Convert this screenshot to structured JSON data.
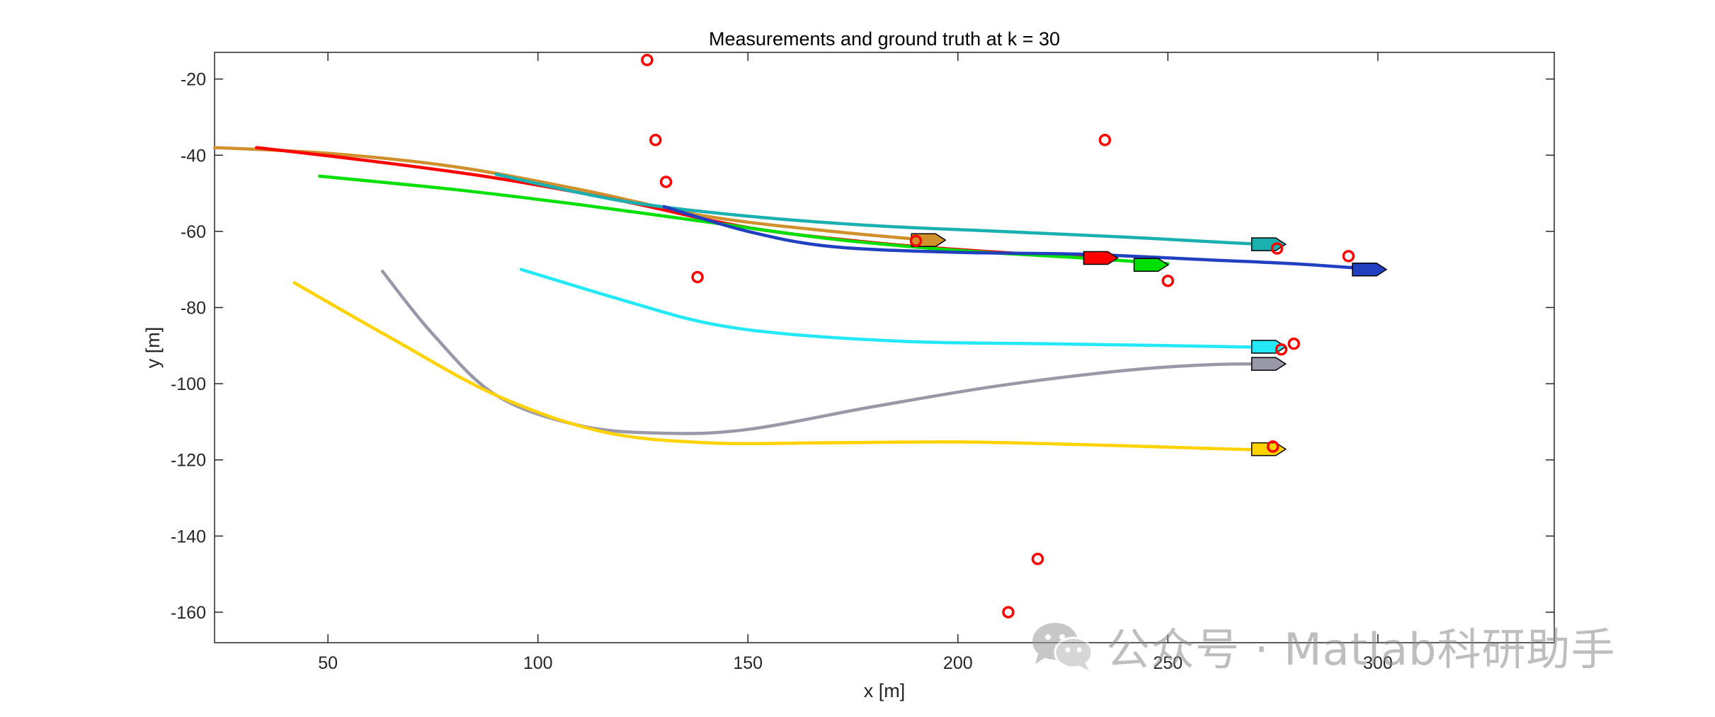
{
  "chart_data": {
    "type": "line",
    "title": "Measurements and ground truth at k = 30",
    "xlabel": "x [m]",
    "ylabel": "y [m]",
    "xlim": [
      23,
      342
    ],
    "ylim": [
      -168,
      -13
    ],
    "xticks": [
      50,
      100,
      150,
      200,
      250,
      300
    ],
    "yticks": [
      -20,
      -40,
      -60,
      -80,
      -100,
      -120,
      -140,
      -160
    ],
    "grid": false,
    "series": [
      {
        "color": "#d0912d",
        "points": [
          [
            23,
            -38
          ],
          [
            50,
            -39.5
          ],
          [
            80,
            -43
          ],
          [
            110,
            -49
          ],
          [
            140,
            -56
          ],
          [
            170,
            -60
          ],
          [
            195,
            -62.5
          ]
        ]
      },
      {
        "color": "#ff0000",
        "points": [
          [
            33,
            -38
          ],
          [
            60,
            -41.5
          ],
          [
            90,
            -46
          ],
          [
            120,
            -52
          ],
          [
            150,
            -59
          ],
          [
            180,
            -63
          ],
          [
            210,
            -65.5
          ],
          [
            237,
            -67
          ]
        ]
      },
      {
        "color": "#1ab0b0",
        "points": [
          [
            90,
            -45
          ],
          [
            120,
            -52
          ],
          [
            150,
            -56
          ],
          [
            180,
            -58.5
          ],
          [
            210,
            -60
          ],
          [
            240,
            -61.5
          ],
          [
            265,
            -63
          ],
          [
            276,
            -63.5
          ]
        ]
      },
      {
        "color": "#00e000",
        "points": [
          [
            48,
            -45.5
          ],
          [
            80,
            -49
          ],
          [
            110,
            -53
          ],
          [
            140,
            -57.5
          ],
          [
            170,
            -62
          ],
          [
            200,
            -65
          ],
          [
            230,
            -67
          ],
          [
            250,
            -68.5
          ]
        ]
      },
      {
        "color": "#2040c0",
        "points": [
          [
            130,
            -53.5
          ],
          [
            150,
            -60
          ],
          [
            170,
            -64
          ],
          [
            200,
            -65.5
          ],
          [
            230,
            -66
          ],
          [
            260,
            -67.5
          ],
          [
            280,
            -68.5
          ],
          [
            300,
            -70
          ]
        ]
      },
      {
        "color": "#22e8f8",
        "points": [
          [
            96,
            -70
          ],
          [
            120,
            -78
          ],
          [
            140,
            -84
          ],
          [
            160,
            -87
          ],
          [
            190,
            -89
          ],
          [
            220,
            -89.5
          ],
          [
            250,
            -90
          ],
          [
            276,
            -90.5
          ]
        ]
      },
      {
        "color": "#9898a8",
        "points": [
          [
            63,
            -70.5
          ],
          [
            75,
            -87
          ],
          [
            90,
            -103
          ],
          [
            110,
            -111
          ],
          [
            130,
            -113
          ],
          [
            150,
            -112
          ],
          [
            180,
            -106
          ],
          [
            210,
            -100.5
          ],
          [
            240,
            -96.5
          ],
          [
            260,
            -95
          ],
          [
            277,
            -94.8
          ]
        ]
      },
      {
        "color": "#ffd200",
        "points": [
          [
            42,
            -73.5
          ],
          [
            65,
            -88
          ],
          [
            90,
            -103
          ],
          [
            115,
            -112.5
          ],
          [
            140,
            -115.5
          ],
          [
            170,
            -115.5
          ],
          [
            200,
            -115.3
          ],
          [
            230,
            -116
          ],
          [
            260,
            -117
          ],
          [
            276,
            -117.5
          ]
        ]
      }
    ],
    "markers": [
      {
        "color": "#ffd200",
        "x": 274,
        "y": -117.2
      },
      {
        "color": "#9898a8",
        "x": 274,
        "y": -94.8
      },
      {
        "color": "#22e8f8",
        "x": 274,
        "y": -90.3
      },
      {
        "color": "#1ab0b0",
        "x": 274,
        "y": -63.4
      },
      {
        "color": "#2040c0",
        "x": 298,
        "y": -70
      },
      {
        "color": "#00e000",
        "x": 246,
        "y": -68.8
      },
      {
        "color": "#ff0000",
        "x": 234,
        "y": -67
      },
      {
        "color": "#d0912d",
        "x": 193,
        "y": -62.3
      }
    ],
    "measurements": [
      [
        126,
        -15
      ],
      [
        128,
        -36
      ],
      [
        130.5,
        -47
      ],
      [
        138,
        -72
      ],
      [
        190,
        -62.5
      ],
      [
        212,
        -160
      ],
      [
        219,
        -146
      ],
      [
        235,
        -36
      ],
      [
        250,
        -73
      ],
      [
        276,
        -64.5
      ],
      [
        277,
        -91
      ],
      [
        280,
        -89.5
      ],
      [
        275,
        -116.5
      ],
      [
        293,
        -66.5
      ]
    ]
  },
  "watermark": {
    "text": "公众号 · Matlab科研助手",
    "icon": "wechat-icon"
  }
}
